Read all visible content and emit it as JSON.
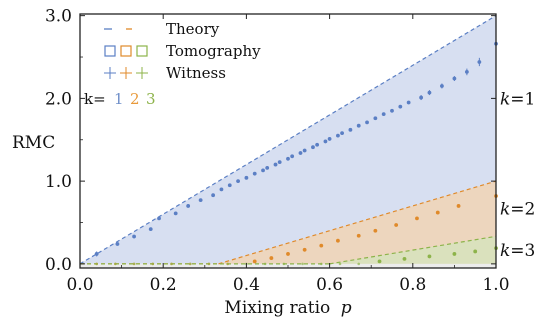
{
  "chart_data": {
    "type": "scatter",
    "xlabel": "Mixing ratio",
    "xlabel_var": "p",
    "ylabel": "RMC",
    "xlim": [
      0.0,
      1.0
    ],
    "ylim": [
      0.0,
      3.0
    ],
    "xticks": [
      0.0,
      0.2,
      0.4,
      0.6,
      0.8,
      1.0
    ],
    "xtick_labels": [
      "0.0",
      "0.2",
      "0.4",
      "0.6",
      "0.8",
      "1.0"
    ],
    "yticks": [
      0.0,
      1.0,
      2.0,
      3.0
    ],
    "ytick_labels": [
      "0.0",
      "1.0",
      "2.0",
      "3.0"
    ],
    "legend": {
      "placement": "top-left",
      "entries": [
        {
          "label": "Theory",
          "marker": "dashed-line"
        },
        {
          "label": "Tomography",
          "marker": "open-square"
        },
        {
          "label": "Witness",
          "marker": "errorbar-cross"
        }
      ],
      "k_prefix": "k=",
      "k_values": [
        {
          "label": "1",
          "color": "#6f8fc9"
        },
        {
          "label": "2",
          "color": "#e89a3c"
        },
        {
          "label": "3",
          "color": "#8db34a"
        }
      ]
    },
    "right_labels": [
      {
        "prefix": "k=",
        "value": "1",
        "at_y": 2.0
      },
      {
        "prefix": "k=",
        "value": "2",
        "at_y": 0.67
      },
      {
        "prefix": "k=",
        "value": "3",
        "at_y": 0.17
      }
    ],
    "series": [
      {
        "k": 1,
        "color": "#5b7fc4",
        "fill": "#d3dcef",
        "theory": {
          "x": [
            0.0,
            1.0
          ],
          "y": [
            0.0,
            3.0
          ]
        },
        "witness_x": [
          0.04,
          0.09,
          0.13,
          0.17,
          0.19,
          0.23,
          0.26,
          0.29,
          0.32,
          0.34,
          0.36,
          0.38,
          0.4,
          0.42,
          0.44,
          0.45,
          0.47,
          0.48,
          0.5,
          0.51,
          0.53,
          0.54,
          0.56,
          0.57,
          0.59,
          0.6,
          0.62,
          0.63,
          0.65,
          0.67,
          0.69,
          0.71,
          0.73,
          0.75,
          0.77,
          0.79,
          0.82,
          0.84,
          0.87,
          0.9,
          0.93,
          0.96,
          1.0
        ],
        "witness_y": [
          0.12,
          0.24,
          0.33,
          0.42,
          0.55,
          0.61,
          0.7,
          0.77,
          0.83,
          0.9,
          0.95,
          1.0,
          1.04,
          1.09,
          1.13,
          1.16,
          1.2,
          1.23,
          1.27,
          1.3,
          1.34,
          1.37,
          1.41,
          1.44,
          1.48,
          1.51,
          1.55,
          1.58,
          1.62,
          1.67,
          1.71,
          1.76,
          1.81,
          1.85,
          1.9,
          1.95,
          2.01,
          2.07,
          2.15,
          2.24,
          2.32,
          2.44,
          2.66
        ],
        "witness_err": [
          0.03,
          0.02,
          0.02,
          0.02,
          0.02,
          0.02,
          0.02,
          0.02,
          0.02,
          0.02,
          0.02,
          0.02,
          0.02,
          0.02,
          0.02,
          0.02,
          0.02,
          0.02,
          0.02,
          0.02,
          0.02,
          0.02,
          0.02,
          0.02,
          0.02,
          0.02,
          0.02,
          0.02,
          0.02,
          0.02,
          0.02,
          0.02,
          0.02,
          0.02,
          0.02,
          0.02,
          0.03,
          0.03,
          0.03,
          0.03,
          0.04,
          0.05,
          0.06
        ]
      },
      {
        "k": 2,
        "color": "#e08a2a",
        "fill": "#efd5b8",
        "theory": {
          "x": [
            0.333,
            1.0
          ],
          "y": [
            0.0,
            1.0
          ]
        },
        "witness_x": [
          0.42,
          0.46,
          0.5,
          0.54,
          0.58,
          0.62,
          0.67,
          0.71,
          0.76,
          0.81,
          0.86,
          0.91,
          1.0
        ],
        "witness_y": [
          0.03,
          0.07,
          0.12,
          0.17,
          0.22,
          0.28,
          0.34,
          0.4,
          0.47,
          0.55,
          0.62,
          0.7,
          0.82
        ],
        "witness_err": [
          0.01,
          0.01,
          0.01,
          0.01,
          0.01,
          0.01,
          0.01,
          0.01,
          0.01,
          0.01,
          0.01,
          0.01,
          0.02
        ]
      },
      {
        "k": 3,
        "color": "#8db34a",
        "fill": "#d7e2bc",
        "theory": {
          "x": [
            0.6,
            1.0
          ],
          "y": [
            0.0,
            0.333
          ]
        },
        "witness_x": [
          0.72,
          0.78,
          0.84,
          0.9,
          0.95,
          1.0
        ],
        "witness_y": [
          0.03,
          0.06,
          0.09,
          0.12,
          0.15,
          0.19
        ],
        "witness_err": [
          0.01,
          0.01,
          0.01,
          0.01,
          0.01,
          0.02
        ]
      }
    ]
  }
}
